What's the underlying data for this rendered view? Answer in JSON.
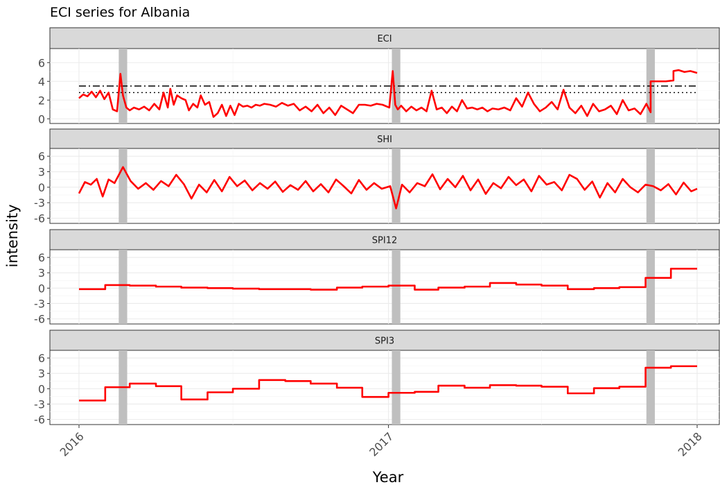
{
  "chart_data": {
    "type": "line",
    "title": "ECI series for Albania",
    "xlabel": "Year",
    "ylabel": "intensity",
    "x_ticks": [
      "2016",
      "2017",
      "2018"
    ],
    "xlim": [
      "2016-01-01",
      "2018-01-01"
    ],
    "grid": true,
    "highlight_periods": [
      {
        "start": "2016-02-17",
        "end": "2016-02-27"
      },
      {
        "start": "2017-01-05",
        "end": "2017-01-15"
      },
      {
        "start": "2017-11-02",
        "end": "2017-11-12"
      }
    ],
    "panels": [
      {
        "name": "ECI",
        "ylim": [
          -0.5,
          7.5
        ],
        "y_ticks": [
          0,
          2,
          4,
          6
        ],
        "reference_lines": [
          {
            "y": 3.5,
            "style": "dashdot"
          },
          {
            "y": 2.8,
            "style": "dotted"
          }
        ],
        "series": {
          "color": "#ff0000",
          "x": [
            "2016-01-01",
            "2016-01-06",
            "2016-01-11",
            "2016-01-16",
            "2016-01-21",
            "2016-01-26",
            "2016-01-31",
            "2016-02-05",
            "2016-02-10",
            "2016-02-15",
            "2016-02-19",
            "2016-02-22",
            "2016-02-26",
            "2016-03-01",
            "2016-03-06",
            "2016-03-12",
            "2016-03-18",
            "2016-03-24",
            "2016-03-30",
            "2016-04-05",
            "2016-04-10",
            "2016-04-15",
            "2016-04-18",
            "2016-04-22",
            "2016-04-26",
            "2016-05-01",
            "2016-05-06",
            "2016-05-10",
            "2016-05-15",
            "2016-05-20",
            "2016-05-24",
            "2016-05-29",
            "2016-06-03",
            "2016-06-08",
            "2016-06-13",
            "2016-06-18",
            "2016-06-23",
            "2016-06-28",
            "2016-07-03",
            "2016-07-08",
            "2016-07-13",
            "2016-07-18",
            "2016-07-23",
            "2016-07-28",
            "2016-08-02",
            "2016-08-07",
            "2016-08-14",
            "2016-08-21",
            "2016-08-28",
            "2016-09-04",
            "2016-09-11",
            "2016-09-18",
            "2016-09-25",
            "2016-10-02",
            "2016-10-09",
            "2016-10-16",
            "2016-10-23",
            "2016-10-30",
            "2016-11-06",
            "2016-11-13",
            "2016-11-20",
            "2016-11-27",
            "2016-12-04",
            "2016-12-11",
            "2016-12-18",
            "2016-12-25",
            "2017-01-02",
            "2017-01-06",
            "2017-01-09",
            "2017-01-12",
            "2017-01-16",
            "2017-01-22",
            "2017-01-28",
            "2017-02-03",
            "2017-02-09",
            "2017-02-15",
            "2017-02-21",
            "2017-02-27",
            "2017-03-05",
            "2017-03-11",
            "2017-03-17",
            "2017-03-23",
            "2017-03-29",
            "2017-04-04",
            "2017-04-10",
            "2017-04-16",
            "2017-04-22",
            "2017-04-28",
            "2017-05-04",
            "2017-05-11",
            "2017-05-18",
            "2017-05-25",
            "2017-06-01",
            "2017-06-08",
            "2017-06-15",
            "2017-06-22",
            "2017-06-29",
            "2017-07-06",
            "2017-07-13",
            "2017-07-20",
            "2017-07-27",
            "2017-08-03",
            "2017-08-10",
            "2017-08-17",
            "2017-08-24",
            "2017-08-31",
            "2017-09-07",
            "2017-09-14",
            "2017-09-21",
            "2017-09-28",
            "2017-10-05",
            "2017-10-12",
            "2017-10-19",
            "2017-10-26",
            "2017-11-02",
            "2017-11-07",
            "2017-11-07",
            "2017-11-25",
            "2017-12-04",
            "2017-12-04",
            "2017-12-10",
            "2017-12-17",
            "2017-12-24",
            "2018-01-01"
          ],
          "y": [
            2.2,
            2.6,
            2.4,
            2.9,
            2.3,
            3.0,
            2.1,
            2.8,
            1.0,
            0.8,
            4.8,
            2.5,
            1.2,
            0.9,
            1.2,
            1.0,
            1.3,
            0.9,
            1.6,
            1.0,
            2.8,
            1.2,
            3.2,
            1.5,
            2.5,
            2.2,
            2.0,
            0.9,
            1.6,
            1.2,
            2.5,
            1.5,
            1.8,
            0.2,
            0.6,
            1.5,
            0.3,
            1.4,
            0.4,
            1.6,
            1.3,
            1.4,
            1.2,
            1.5,
            1.4,
            1.6,
            1.5,
            1.3,
            1.7,
            1.4,
            1.6,
            0.9,
            1.3,
            0.8,
            1.5,
            0.6,
            1.2,
            0.4,
            1.4,
            1.0,
            0.6,
            1.5,
            1.5,
            1.4,
            1.6,
            1.5,
            1.2,
            5.1,
            1.5,
            1.0,
            1.4,
            0.8,
            1.3,
            0.9,
            1.2,
            0.8,
            3.0,
            1.0,
            1.2,
            0.6,
            1.3,
            0.8,
            2.0,
            1.1,
            1.2,
            1.0,
            1.2,
            0.8,
            1.1,
            1.0,
            1.2,
            0.9,
            2.2,
            1.3,
            2.8,
            1.6,
            0.8,
            1.2,
            1.8,
            1.0,
            3.1,
            1.2,
            0.6,
            1.4,
            0.3,
            1.6,
            0.8,
            1.0,
            1.4,
            0.5,
            2.0,
            0.9,
            1.1,
            0.5,
            1.6,
            0.7,
            4.0,
            4.0,
            4.1,
            5.1,
            5.2,
            5.0,
            5.1,
            4.9
          ]
        }
      },
      {
        "name": "SHI",
        "ylim": [
          -7,
          7.5
        ],
        "y_ticks": [
          -6,
          -3,
          0,
          3,
          6
        ],
        "series": {
          "color": "#ff0000",
          "x": [
            "2016-01-01",
            "2016-01-08",
            "2016-01-15",
            "2016-01-22",
            "2016-01-29",
            "2016-02-05",
            "2016-02-12",
            "2016-02-22",
            "2016-03-02",
            "2016-03-11",
            "2016-03-20",
            "2016-03-29",
            "2016-04-07",
            "2016-04-16",
            "2016-04-25",
            "2016-05-04",
            "2016-05-13",
            "2016-05-22",
            "2016-05-31",
            "2016-06-09",
            "2016-06-18",
            "2016-06-27",
            "2016-07-06",
            "2016-07-15",
            "2016-07-24",
            "2016-08-02",
            "2016-08-11",
            "2016-08-20",
            "2016-08-29",
            "2016-09-07",
            "2016-09-16",
            "2016-09-25",
            "2016-10-04",
            "2016-10-13",
            "2016-10-22",
            "2016-10-31",
            "2016-11-09",
            "2016-11-18",
            "2016-11-27",
            "2016-12-06",
            "2016-12-15",
            "2016-12-24",
            "2017-01-03",
            "2017-01-10",
            "2017-01-17",
            "2017-01-26",
            "2017-02-04",
            "2017-02-13",
            "2017-02-22",
            "2017-03-03",
            "2017-03-12",
            "2017-03-21",
            "2017-03-30",
            "2017-04-08",
            "2017-04-17",
            "2017-04-26",
            "2017-05-05",
            "2017-05-14",
            "2017-05-23",
            "2017-06-01",
            "2017-06-10",
            "2017-06-19",
            "2017-06-28",
            "2017-07-07",
            "2017-07-16",
            "2017-07-25",
            "2017-08-03",
            "2017-08-12",
            "2017-08-21",
            "2017-08-30",
            "2017-09-08",
            "2017-09-17",
            "2017-09-26",
            "2017-10-05",
            "2017-10-14",
            "2017-10-23",
            "2017-11-01",
            "2017-11-10",
            "2017-11-19",
            "2017-11-28",
            "2017-12-07",
            "2017-12-16",
            "2017-12-25",
            "2018-01-01"
          ],
          "y": [
            -1.2,
            1.0,
            0.5,
            1.6,
            -1.8,
            1.5,
            0.8,
            3.9,
            1.2,
            -0.3,
            0.8,
            -0.5,
            1.2,
            0.2,
            2.4,
            0.6,
            -2.2,
            0.5,
            -1.0,
            1.4,
            -0.8,
            2.0,
            0.2,
            1.3,
            -0.6,
            0.8,
            -0.3,
            1.1,
            -0.9,
            0.4,
            -0.5,
            1.2,
            -0.8,
            0.6,
            -1.0,
            1.5,
            0.2,
            -1.2,
            1.4,
            -0.5,
            0.8,
            -0.3,
            0.2,
            -4.1,
            0.5,
            -1.0,
            0.8,
            0.2,
            2.5,
            -0.4,
            1.6,
            0.0,
            2.2,
            -0.6,
            1.5,
            -1.3,
            0.8,
            -0.2,
            2.0,
            0.4,
            1.5,
            -0.8,
            2.2,
            0.5,
            1.0,
            -0.6,
            2.4,
            1.6,
            -0.5,
            1.1,
            -2.0,
            0.8,
            -1.0,
            1.6,
            0.0,
            -1.0,
            0.5,
            0.2,
            -0.6,
            0.6,
            -1.4,
            0.9,
            -0.8,
            -0.3
          ]
        }
      },
      {
        "name": "SPI12",
        "ylim": [
          -7,
          7.5
        ],
        "y_ticks": [
          -6,
          -3,
          0,
          3,
          6
        ],
        "series": {
          "color": "#ff0000",
          "x": [
            "2016-01-01",
            "2016-02-01",
            "2016-02-01",
            "2016-03-01",
            "2016-03-01",
            "2016-04-01",
            "2016-04-01",
            "2016-05-01",
            "2016-05-01",
            "2016-06-01",
            "2016-06-01",
            "2016-07-01",
            "2016-07-01",
            "2016-08-01",
            "2016-08-01",
            "2016-09-01",
            "2016-09-01",
            "2016-10-01",
            "2016-10-01",
            "2016-11-01",
            "2016-11-01",
            "2016-12-01",
            "2016-12-01",
            "2017-01-01",
            "2017-01-01",
            "2017-02-01",
            "2017-02-01",
            "2017-03-01",
            "2017-03-01",
            "2017-04-01",
            "2017-04-01",
            "2017-05-01",
            "2017-05-01",
            "2017-06-01",
            "2017-06-01",
            "2017-07-01",
            "2017-07-01",
            "2017-08-01",
            "2017-08-01",
            "2017-09-01",
            "2017-09-01",
            "2017-10-01",
            "2017-10-01",
            "2017-11-01",
            "2017-11-01",
            "2017-12-01",
            "2017-12-01",
            "2018-01-01"
          ],
          "y": [
            -0.2,
            -0.2,
            0.6,
            0.6,
            0.5,
            0.5,
            0.3,
            0.3,
            0.1,
            0.1,
            0.0,
            0.0,
            -0.1,
            -0.1,
            -0.2,
            -0.2,
            -0.2,
            -0.2,
            -0.3,
            -0.3,
            0.1,
            0.1,
            0.3,
            0.3,
            0.5,
            0.5,
            -0.3,
            -0.3,
            0.1,
            0.1,
            0.3,
            0.3,
            1.0,
            1.0,
            0.7,
            0.7,
            0.5,
            0.5,
            -0.2,
            -0.2,
            0.0,
            0.0,
            0.2,
            0.2,
            2.0,
            2.0,
            3.8,
            3.8
          ]
        }
      },
      {
        "name": "SPI3",
        "ylim": [
          -7,
          7.5
        ],
        "y_ticks": [
          -6,
          -3,
          0,
          3,
          6
        ],
        "series": {
          "color": "#ff0000",
          "x": [
            "2016-01-01",
            "2016-02-01",
            "2016-02-01",
            "2016-03-01",
            "2016-03-01",
            "2016-04-01",
            "2016-04-01",
            "2016-05-01",
            "2016-05-01",
            "2016-06-01",
            "2016-06-01",
            "2016-07-01",
            "2016-07-01",
            "2016-08-01",
            "2016-08-01",
            "2016-09-01",
            "2016-09-01",
            "2016-10-01",
            "2016-10-01",
            "2016-11-01",
            "2016-11-01",
            "2016-12-01",
            "2016-12-01",
            "2017-01-01",
            "2017-01-01",
            "2017-02-01",
            "2017-02-01",
            "2017-03-01",
            "2017-03-01",
            "2017-04-01",
            "2017-04-01",
            "2017-05-01",
            "2017-05-01",
            "2017-06-01",
            "2017-06-01",
            "2017-07-01",
            "2017-07-01",
            "2017-08-01",
            "2017-08-01",
            "2017-09-01",
            "2017-09-01",
            "2017-10-01",
            "2017-10-01",
            "2017-11-01",
            "2017-11-01",
            "2017-12-01",
            "2017-12-01",
            "2018-01-01"
          ],
          "y": [
            -2.3,
            -2.3,
            0.3,
            0.3,
            1.0,
            1.0,
            0.5,
            0.5,
            -2.1,
            -2.1,
            -0.7,
            -0.7,
            0.0,
            0.0,
            1.7,
            1.7,
            1.5,
            1.5,
            1.0,
            1.0,
            0.2,
            0.2,
            -1.6,
            -1.6,
            -0.8,
            -0.8,
            -0.6,
            -0.6,
            0.6,
            0.6,
            0.2,
            0.2,
            0.7,
            0.7,
            0.6,
            0.6,
            0.4,
            0.4,
            -0.9,
            -0.9,
            0.1,
            0.1,
            0.4,
            0.4,
            4.1,
            4.1,
            4.4,
            4.4
          ]
        }
      }
    ]
  }
}
